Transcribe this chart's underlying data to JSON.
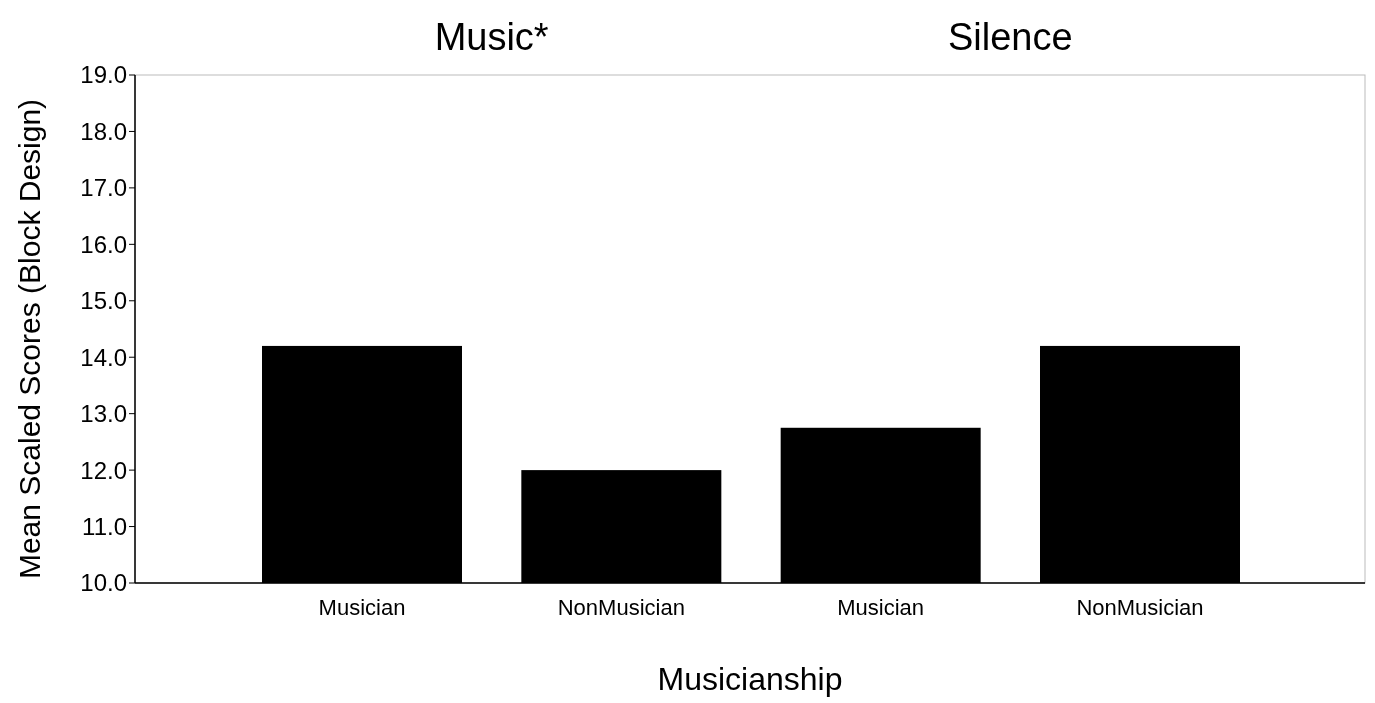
{
  "chart_data": {
    "type": "bar",
    "categories": [
      "Musician",
      "NonMusician",
      "Musician",
      "NonMusician"
    ],
    "values": [
      14.2,
      12.0,
      12.75,
      14.2
    ],
    "color": "#000000",
    "xlabel": "Musicianship",
    "ylabel": "Mean Scaled Scores (Block Design)",
    "annotations": [
      "Music*",
      "Silence"
    ],
    "ylim": [
      10,
      19
    ],
    "yticks": [
      {
        "value": 10,
        "label": "10.0"
      },
      {
        "value": 11,
        "label": "11.0"
      },
      {
        "value": 12,
        "label": "12.0"
      },
      {
        "value": 13,
        "label": "13.0"
      },
      {
        "value": 14,
        "label": "14.0"
      },
      {
        "value": 15,
        "label": "15.0"
      },
      {
        "value": 16,
        "label": "16.0"
      },
      {
        "value": 17,
        "label": "17.0"
      },
      {
        "value": 18,
        "label": "18.0"
      },
      {
        "value": 19,
        "label": "19.0"
      }
    ],
    "grid": false
  }
}
